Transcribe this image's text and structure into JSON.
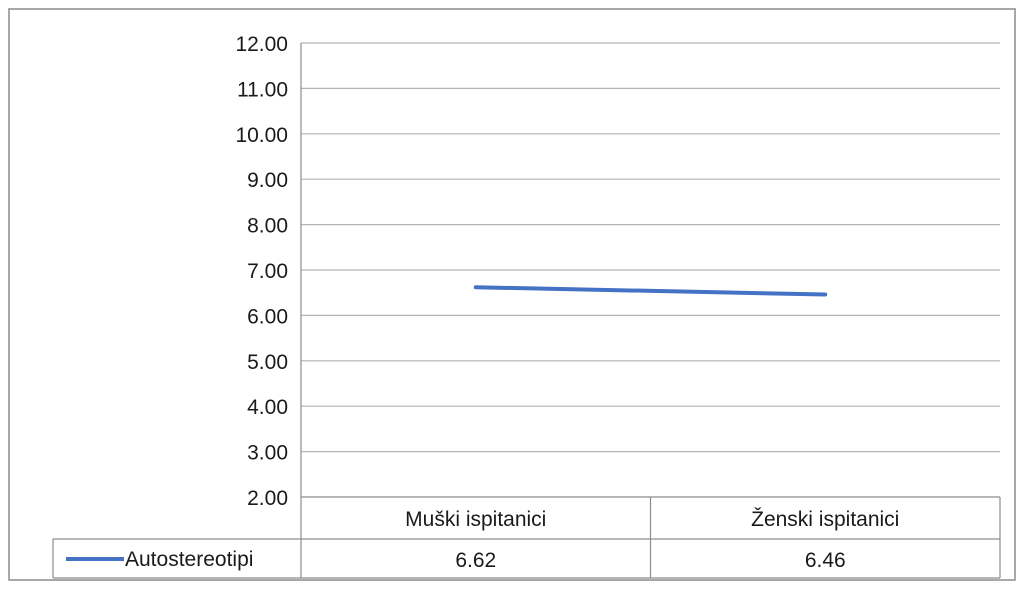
{
  "chart_data": {
    "type": "line",
    "categories": [
      "Muški ispitanici",
      "Ženski ispitanici"
    ],
    "series": [
      {
        "name": "Autostereotipi",
        "values": [
          6.62,
          6.46
        ],
        "value_labels": [
          "6.62",
          "6.46"
        ],
        "color": "#4472c4"
      }
    ],
    "ylim": [
      2,
      12
    ],
    "yticks": [
      "2.00",
      "3.00",
      "4.00",
      "5.00",
      "6.00",
      "7.00",
      "8.00",
      "9.00",
      "10.00",
      "11.00",
      "12.00"
    ],
    "grid": true,
    "legend": "bottom-left data table",
    "colors": {
      "gridline": "#b3b3b3",
      "border": "#8c8c8c",
      "series": "#4472c4"
    }
  }
}
